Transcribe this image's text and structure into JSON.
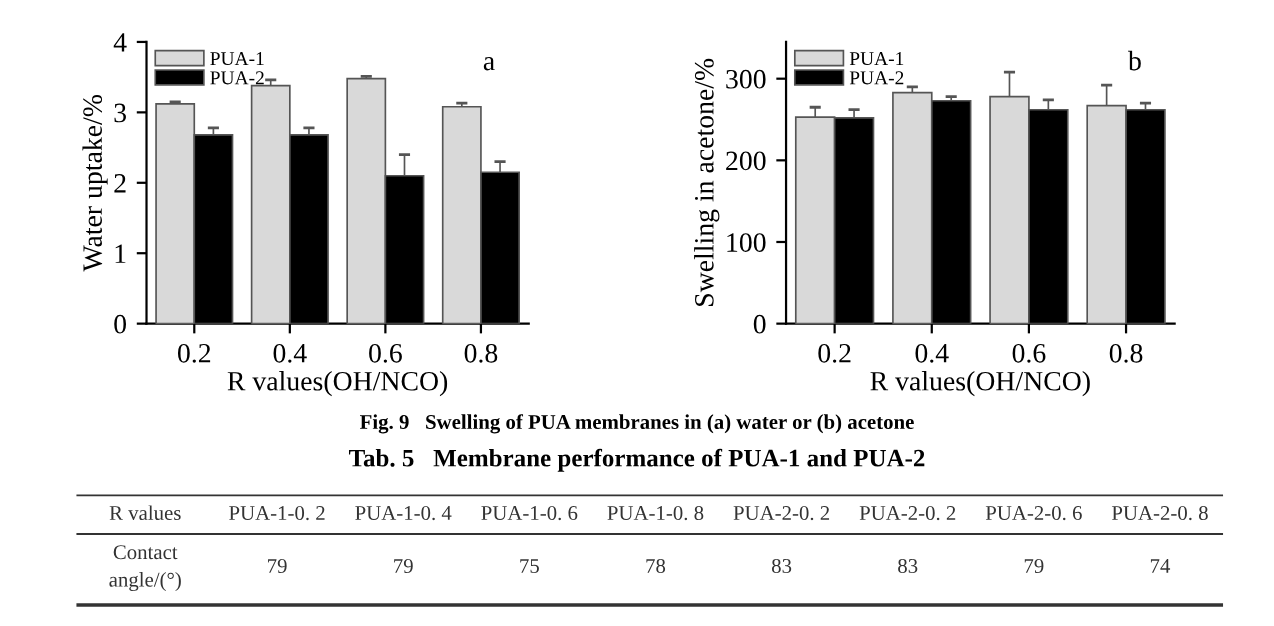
{
  "chart_data": [
    {
      "type": "bar",
      "categories": [
        "0.2",
        "0.4",
        "0.6",
        "0.8"
      ],
      "xlabel": "R values(OH/NCO)",
      "ylabel": "Water uptake/%",
      "ylim": [
        0,
        4
      ],
      "yticks": [
        0,
        1,
        2,
        3,
        4
      ],
      "legend": "top left",
      "grid": false,
      "annotations": [
        "a",
        "Fig. 9   Swelling of PUA membranes in (a) water or (b) acetone"
      ],
      "series": [
        {
          "name": "PUA-1",
          "color": "#d9d9d9",
          "values": [
            3.12,
            3.38,
            3.48,
            3.08
          ],
          "errors": [
            0.03,
            0.08,
            0.03,
            0.05
          ]
        },
        {
          "name": "PUA-2",
          "color": "#000000",
          "values": [
            2.68,
            2.68,
            2.1,
            2.15
          ],
          "errors": [
            0.1,
            0.1,
            0.3,
            0.15
          ]
        }
      ]
    },
    {
      "type": "bar",
      "categories": [
        "0.2",
        "0.4",
        "0.6",
        "0.8"
      ],
      "xlabel": "R values(OH/NCO)",
      "ylabel": "Swelling in acetone/%",
      "ylim": [
        0,
        345
      ],
      "yticks": [
        0,
        100,
        200,
        300
      ],
      "legend": "top left",
      "grid": false,
      "annotations": [
        "b"
      ],
      "series": [
        {
          "name": "PUA-1",
          "color": "#d9d9d9",
          "values": [
            253,
            283,
            278,
            267
          ],
          "errors": [
            12,
            7,
            30,
            25
          ]
        },
        {
          "name": "PUA-2",
          "color": "#000000",
          "values": [
            252,
            273,
            262,
            262
          ],
          "errors": [
            10,
            5,
            12,
            8
          ]
        }
      ]
    },
    {
      "type": "other",
      "title": "Tab. 5   Membrane performance of PUA-1 and PUA-2",
      "annotations": [
        "R values",
        "PUA-1-0. 2",
        "PUA-1-0. 4",
        "PUA-1-0. 6",
        "PUA-1-0. 8",
        "PUA-2-0. 2",
        "PUA-2-0. 2",
        "PUA-2-0. 6",
        "PUA-2-0. 8",
        "Contact\nangle/(°)",
        "79",
        "79",
        "75",
        "78",
        "83",
        "83",
        "79",
        "74"
      ]
    }
  ]
}
